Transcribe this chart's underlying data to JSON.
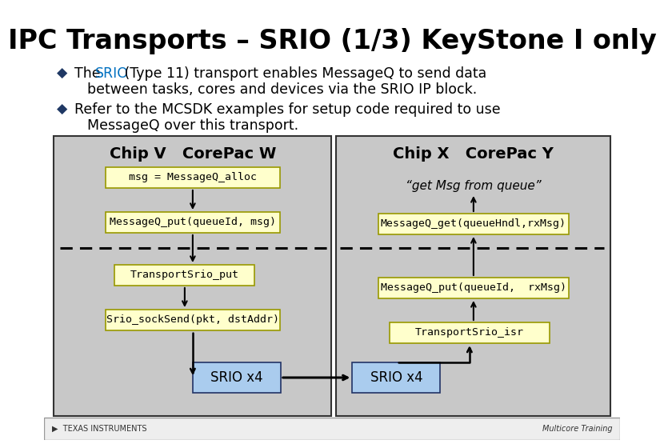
{
  "title": "IPC Transports – SRIO (1/3) KeyStone I only",
  "title_fontsize": 24,
  "bg_color": "#ffffff",
  "bullet_color": "#1f3864",
  "srio_color": "#0070c0",
  "chip_v_title": "Chip V   CorePac W",
  "chip_x_title": "Chip X   CorePac Y",
  "chip_bg": "#c8c8c8",
  "box_bg": "#ffffcc",
  "box_border": "#999900",
  "srio_box_bg": "#aaccee",
  "srio_box_border": "#223366",
  "srio_label": "SRIO x4",
  "footer_left": "▶  TEXAS INSTRUMENTS",
  "footer_right": "Multicore Training",
  "footer_bg": "#eeeeee"
}
